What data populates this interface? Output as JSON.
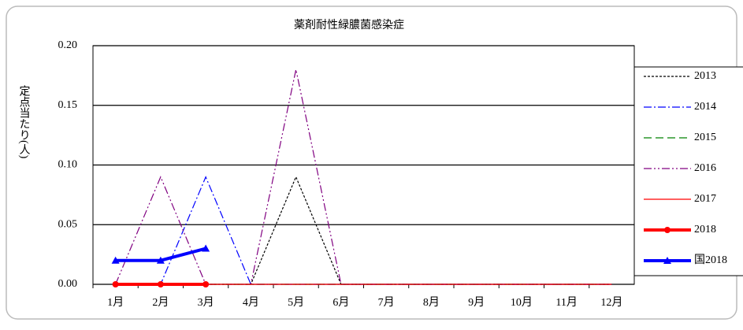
{
  "chart_data": {
    "type": "line",
    "title": "薬剤耐性緑膿菌感染症",
    "y_label": "定点当たり(人)",
    "categories": [
      "1月",
      "2月",
      "3月",
      "4月",
      "5月",
      "6月",
      "7月",
      "8月",
      "9月",
      "10月",
      "11月",
      "12月"
    ],
    "ylim": [
      0,
      0.2
    ],
    "yticks": [
      {
        "value": 0,
        "label": "0.00"
      },
      {
        "value": 0.05,
        "label": "0.05"
      },
      {
        "value": 0.1,
        "label": "0.10"
      },
      {
        "value": 0.15,
        "label": "0.15"
      },
      {
        "value": 0.2,
        "label": "0.20"
      }
    ],
    "grid": true,
    "legend": "right",
    "series": [
      {
        "name": "2013",
        "color": "#000000",
        "dash": "3,2",
        "width": 1.2,
        "values": [
          0,
          0,
          0,
          0,
          0.09,
          0,
          0,
          0,
          0,
          0,
          0,
          0
        ]
      },
      {
        "name": "2014",
        "color": "#0000ff",
        "dash": "10,3,2,3",
        "width": 1.2,
        "values": [
          0,
          0,
          0.09,
          0,
          0,
          0,
          0,
          0,
          0,
          0,
          0,
          0
        ]
      },
      {
        "name": "2015",
        "color": "#008000",
        "dash": "10,5",
        "width": 1.2,
        "values": [
          0,
          0,
          0,
          0,
          0,
          0,
          0,
          0,
          0,
          0,
          0,
          0
        ]
      },
      {
        "name": "2016",
        "color": "#800080",
        "dash": "10,3,2,3,2,3",
        "width": 1.2,
        "values": [
          0,
          0.09,
          0,
          0,
          0.18,
          0,
          0,
          0,
          0,
          0,
          0,
          0
        ]
      },
      {
        "name": "2017",
        "color": "#ff0000",
        "dash": "",
        "width": 1.2,
        "values": [
          0,
          0,
          0,
          0,
          0,
          0,
          0,
          0,
          0,
          0,
          0,
          0
        ]
      },
      {
        "name": "2018",
        "color": "#ff0000",
        "dash": "",
        "width": 4,
        "marker": "circle",
        "values": [
          0,
          0,
          0,
          null,
          null,
          null,
          null,
          null,
          null,
          null,
          null,
          null
        ]
      },
      {
        "name": "国2018",
        "color": "#0000ff",
        "dash": "",
        "width": 4,
        "marker": "triangle",
        "values": [
          0.02,
          0.02,
          0.03,
          null,
          null,
          null,
          null,
          null,
          null,
          null,
          null,
          null
        ]
      }
    ]
  }
}
